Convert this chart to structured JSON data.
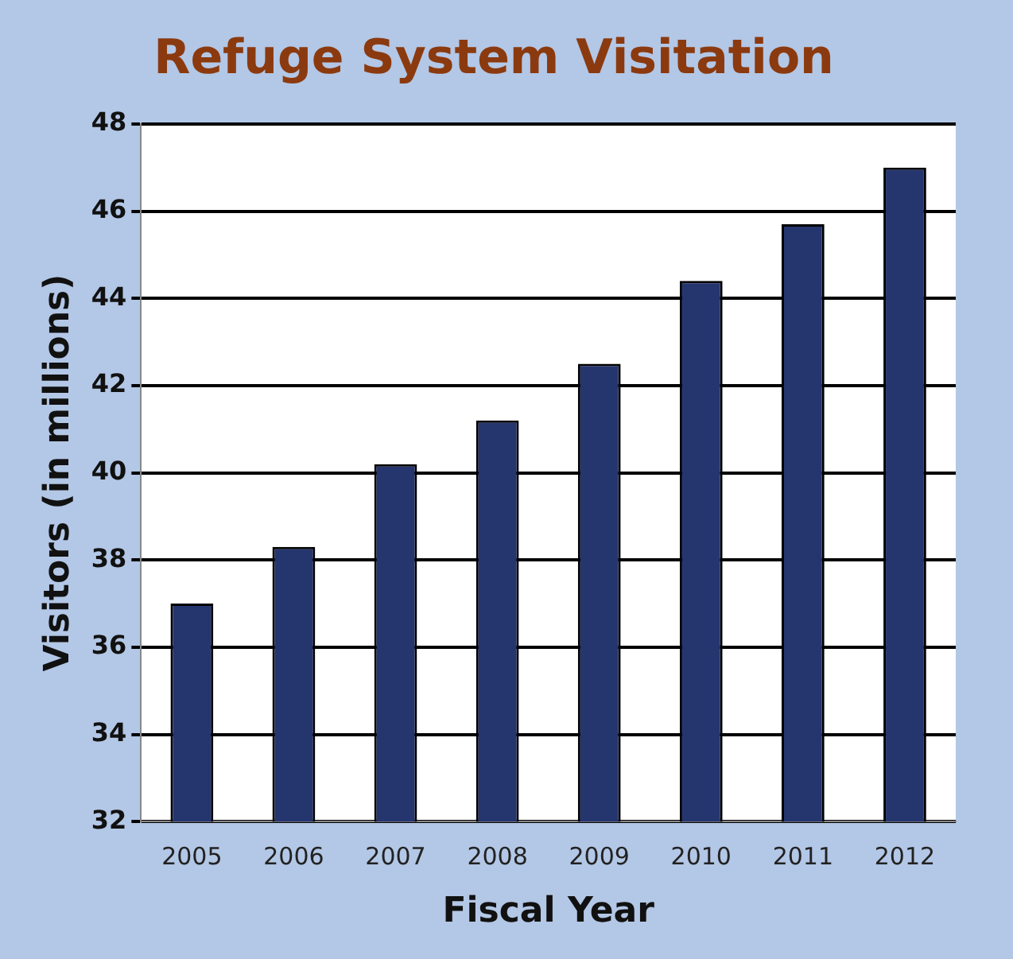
{
  "chart_data": {
    "type": "bar",
    "title": "Refuge System Visitation",
    "xlabel": "Fiscal Year",
    "ylabel": "Visitors (in millions)",
    "categories": [
      "2005",
      "2006",
      "2007",
      "2008",
      "2009",
      "2010",
      "2011",
      "2012"
    ],
    "values": [
      37.0,
      38.3,
      40.2,
      41.2,
      42.5,
      44.4,
      45.7,
      47.0
    ],
    "color": "#25356e",
    "ylim": [
      32,
      48
    ],
    "yticks": [
      32,
      34,
      36,
      38,
      40,
      42,
      44,
      46,
      48
    ],
    "grid": "y",
    "legend": false
  }
}
